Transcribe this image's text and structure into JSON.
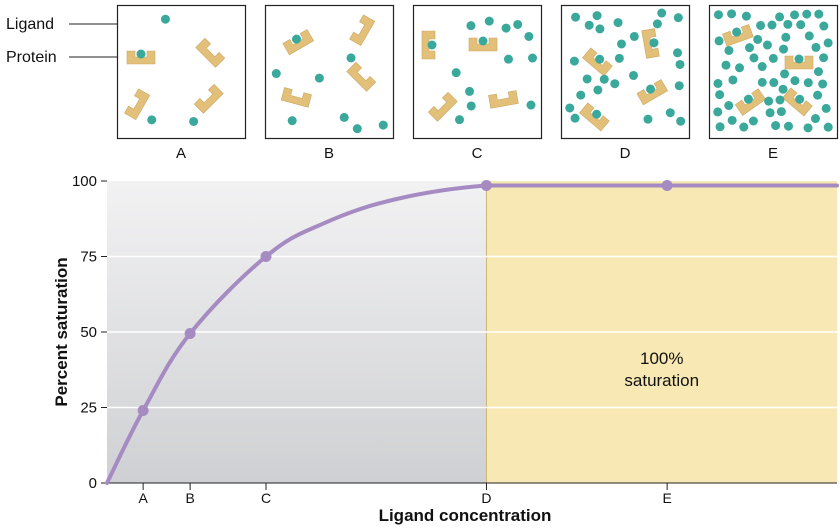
{
  "legend": {
    "ligand_label": "Ligand",
    "protein_label": "Protein"
  },
  "colors": {
    "ligand": "#3aa89b",
    "protein": "#e3c07a",
    "curve": "#a58bc1",
    "saturation_zone": "#f8e9b4",
    "plot_bg_top": "#f2f2f3",
    "plot_bg_bottom": "#cfd0d3"
  },
  "panels": [
    {
      "label": "A",
      "ligands": 4
    },
    {
      "label": "B",
      "ligands": 8
    },
    {
      "label": "C",
      "ligands": 14
    },
    {
      "label": "D",
      "ligands": 30
    },
    {
      "label": "E",
      "ligands": 60
    }
  ],
  "chart_data": {
    "type": "line",
    "xlabel": "Ligand concentration",
    "ylabel": "Percent saturation",
    "ylim": [
      0,
      100
    ],
    "yticks": [
      0,
      25,
      50,
      75,
      100
    ],
    "xlim": [
      0,
      10.1
    ],
    "xticks": [
      {
        "label": "A",
        "x": 0.5
      },
      {
        "label": "B",
        "x": 1.15
      },
      {
        "label": "C",
        "x": 2.2
      },
      {
        "label": "D",
        "x": 5.25
      },
      {
        "label": "E",
        "x": 7.75
      }
    ],
    "series": [
      {
        "name": "Saturation curve",
        "x": [
          0,
          0.5,
          1.15,
          2.2,
          3.0,
          4.0,
          5.25,
          6.5,
          7.75,
          9.0,
          10.1
        ],
        "y": [
          0,
          24,
          49.5,
          75,
          86,
          94,
          98.5,
          98.5,
          98.5,
          98.5,
          98.5
        ]
      }
    ],
    "points": [
      {
        "label": "A",
        "x": 0.5,
        "y": 24
      },
      {
        "label": "B",
        "x": 1.15,
        "y": 49.5
      },
      {
        "label": "C",
        "x": 2.2,
        "y": 75
      },
      {
        "label": "D",
        "x": 5.25,
        "y": 98.5
      },
      {
        "label": "E",
        "x": 7.75,
        "y": 98.5
      }
    ],
    "saturation_region": {
      "x_start": 5.25,
      "label_line1": "100%",
      "label_line2": "saturation"
    }
  }
}
